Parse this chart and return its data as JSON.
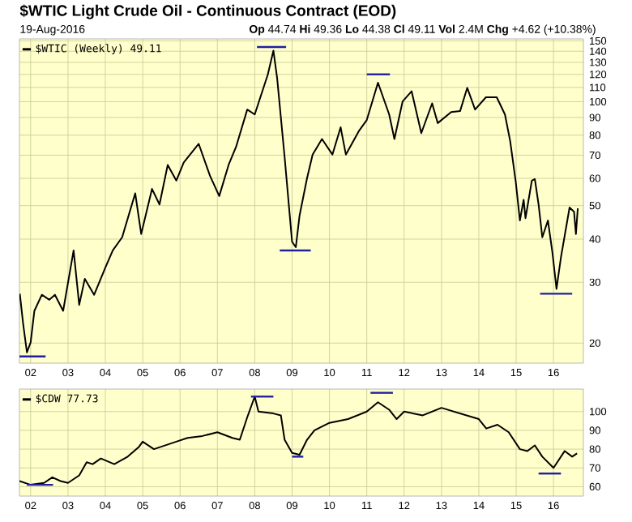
{
  "chart_data": [
    {
      "type": "line",
      "title": "$WTIC Light Crude Oil - Continuous Contract (EOD)",
      "subtitle": "**Op** 44.74 **Hi** 49.36 **Lo** 44.38 **Cl** 49.11 **Vol** 2.4M **Chg** +4.62 (+10.38%)",
      "annotations": [
        "19-Aug-2016"
      ],
      "log": "y",
      "grid": true,
      "legend": "top left",
      "xlim": [
        2001.7,
        2016.8
      ],
      "ylim": [
        17.5,
        152
      ],
      "xticks": [
        {
          "value": 2002,
          "label": "02"
        },
        {
          "value": 2003,
          "label": "03"
        },
        {
          "value": 2004,
          "label": "04"
        },
        {
          "value": 2005,
          "label": "05"
        },
        {
          "value": 2006,
          "label": "06"
        },
        {
          "value": 2007,
          "label": "07"
        },
        {
          "value": 2008,
          "label": "08"
        },
        {
          "value": 2009,
          "label": "09"
        },
        {
          "value": 2010,
          "label": "10"
        },
        {
          "value": 2011,
          "label": "11"
        },
        {
          "value": 2012,
          "label": "12"
        },
        {
          "value": 2013,
          "label": "13"
        },
        {
          "value": 2014,
          "label": "14"
        },
        {
          "value": 2015,
          "label": "15"
        },
        {
          "value": 2016,
          "label": "16"
        }
      ],
      "yticks": [
        20,
        30,
        40,
        50,
        60,
        70,
        80,
        90,
        100,
        110,
        120,
        130,
        140,
        150
      ],
      "series": [
        {
          "name": "$WTIC (Weekly) 49.11",
          "color": "#000000",
          "x": [
            2001.71,
            2001.8,
            2001.9,
            2002.0,
            2002.1,
            2002.3,
            2002.5,
            2002.65,
            2002.87,
            2003.15,
            2003.3,
            2003.45,
            2003.7,
            2004.0,
            2004.2,
            2004.45,
            2004.8,
            2004.96,
            2005.25,
            2005.45,
            2005.67,
            2005.9,
            2006.1,
            2006.5,
            2006.8,
            2007.05,
            2007.3,
            2007.5,
            2007.8,
            2008.0,
            2008.35,
            2008.5,
            2008.6,
            2008.8,
            2009.0,
            2009.1,
            2009.2,
            2009.4,
            2009.55,
            2009.8,
            2010.08,
            2010.3,
            2010.44,
            2010.8,
            2011.0,
            2011.3,
            2011.6,
            2011.74,
            2011.96,
            2012.2,
            2012.46,
            2012.75,
            2012.9,
            2013.26,
            2013.5,
            2013.69,
            2013.9,
            2014.19,
            2014.48,
            2014.7,
            2014.84,
            2014.99,
            2015.1,
            2015.2,
            2015.25,
            2015.42,
            2015.5,
            2015.6,
            2015.7,
            2015.85,
            2015.97,
            2016.08,
            2016.2,
            2016.37,
            2016.43,
            2016.55,
            2016.6,
            2016.65
          ],
          "values": [
            27.8,
            22.7,
            18.8,
            20.1,
            24.8,
            27.6,
            26.7,
            27.6,
            24.8,
            37.1,
            25.8,
            30.7,
            27.6,
            33.1,
            37.1,
            40.5,
            54.3,
            41.4,
            55.9,
            50.4,
            65.6,
            59.1,
            66.7,
            75.5,
            61.1,
            53.3,
            65.6,
            74,
            94.9,
            91.8,
            119.8,
            140.6,
            117,
            69.2,
            39.3,
            37.9,
            46.8,
            60,
            70.3,
            78,
            70.3,
            84.3,
            70.3,
            82.6,
            88.5,
            113.5,
            91.8,
            78,
            100.2,
            107.2,
            81.1,
            98.9,
            86.7,
            93.3,
            94,
            109.7,
            94.9,
            103,
            103,
            91.8,
            76.9,
            58.5,
            45.3,
            52,
            46,
            59.1,
            59.7,
            50.4,
            40.5,
            45.3,
            36.6,
            28.7,
            35.5,
            45.3,
            49.4,
            48,
            41.4,
            49.11
          ]
        },
        {
          "color": "#2020a0",
          "x": [
            2001.7,
            2002.4
          ],
          "values": [
            18.3,
            18.3
          ]
        },
        {
          "color": "#2020a0",
          "x": [
            2008.06,
            2008.84
          ],
          "values": [
            144,
            144
          ]
        },
        {
          "color": "#2020a0",
          "x": [
            2008.67,
            2009.5
          ],
          "values": [
            37.1,
            37.1
          ]
        },
        {
          "color": "#2020a0",
          "x": [
            2011.0,
            2011.62
          ],
          "values": [
            120,
            120
          ]
        },
        {
          "color": "#2020a0",
          "x": [
            2015.64,
            2016.5
          ],
          "values": [
            27.8,
            27.8
          ]
        }
      ]
    },
    {
      "type": "line",
      "grid": true,
      "legend": "top left",
      "xlim": [
        2001.7,
        2016.8
      ],
      "ylim": [
        55,
        112
      ],
      "xticks": [
        {
          "value": 2002,
          "label": "02"
        },
        {
          "value": 2003,
          "label": "03"
        },
        {
          "value": 2004,
          "label": "04"
        },
        {
          "value": 2005,
          "label": "05"
        },
        {
          "value": 2006,
          "label": "06"
        },
        {
          "value": 2007,
          "label": "07"
        },
        {
          "value": 2008,
          "label": "08"
        },
        {
          "value": 2009,
          "label": "09"
        },
        {
          "value": 2010,
          "label": "10"
        },
        {
          "value": 2011,
          "label": "11"
        },
        {
          "value": 2012,
          "label": "12"
        },
        {
          "value": 2013,
          "label": "13"
        },
        {
          "value": 2014,
          "label": "14"
        },
        {
          "value": 2015,
          "label": "15"
        },
        {
          "value": 2016,
          "label": "16"
        }
      ],
      "yticks": [
        60,
        70,
        80,
        90,
        100
      ],
      "series": [
        {
          "name": "$CDW 77.73",
          "color": "#000000",
          "x": [
            2001.7,
            2002.0,
            2002.36,
            2002.58,
            2002.8,
            2003.0,
            2003.3,
            2003.5,
            2003.66,
            2003.88,
            2004.24,
            2004.6,
            2004.89,
            2005.0,
            2005.3,
            2005.6,
            2005.9,
            2006.2,
            2006.6,
            2007.0,
            2007.4,
            2007.6,
            2007.8,
            2008.0,
            2008.1,
            2008.5,
            2008.7,
            2008.8,
            2009.0,
            2009.2,
            2009.4,
            2009.6,
            2010.0,
            2010.5,
            2011.0,
            2011.3,
            2011.6,
            2011.8,
            2012.0,
            2012.5,
            2013.0,
            2013.5,
            2014.0,
            2014.2,
            2014.5,
            2014.8,
            2015.1,
            2015.3,
            2015.5,
            2015.7,
            2016.0,
            2016.3,
            2016.5,
            2016.63
          ],
          "values": [
            63,
            61,
            62,
            65,
            63,
            62,
            66,
            73,
            72,
            75,
            72,
            76,
            81,
            84,
            80,
            82,
            84,
            86,
            87,
            89,
            86,
            85,
            97,
            108,
            100,
            99,
            98,
            85,
            78,
            77,
            85,
            90,
            94,
            96,
            100,
            105,
            101,
            96,
            100,
            98,
            102,
            99,
            96,
            91,
            93,
            89,
            80,
            79,
            82,
            76,
            70,
            79,
            76,
            77.73
          ]
        },
        {
          "color": "#2020a0",
          "x": [
            2001.9,
            2002.6
          ],
          "values": [
            61,
            61
          ]
        },
        {
          "color": "#2020a0",
          "x": [
            2007.9,
            2008.5
          ],
          "values": [
            108,
            108
          ]
        },
        {
          "color": "#2020a0",
          "x": [
            2009.0,
            2009.3
          ],
          "values": [
            76,
            76
          ]
        },
        {
          "color": "#2020a0",
          "x": [
            2011.1,
            2011.7
          ],
          "values": [
            110,
            110
          ]
        },
        {
          "color": "#2020a0",
          "x": [
            2015.6,
            2016.2
          ],
          "values": [
            67,
            67
          ]
        }
      ]
    }
  ]
}
